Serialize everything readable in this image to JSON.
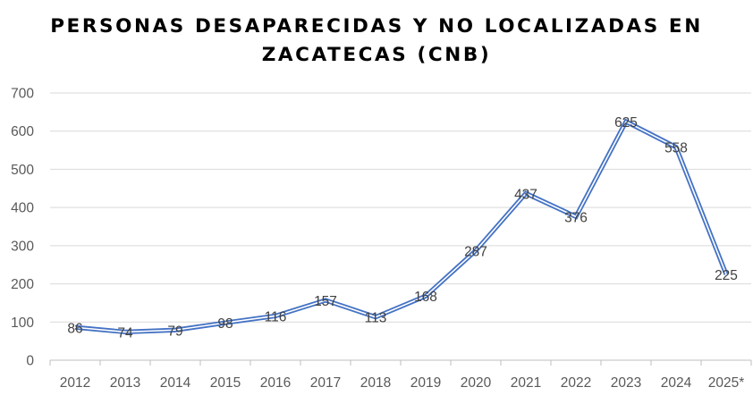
{
  "chart_data": {
    "type": "line",
    "title_lines": [
      "PERSONAS DESAPARECIDAS Y NO LOCALIZADAS EN",
      "ZACATECAS (CNB)"
    ],
    "categories": [
      "2012",
      "2013",
      "2014",
      "2015",
      "2016",
      "2017",
      "2018",
      "2019",
      "2020",
      "2021",
      "2022",
      "2023",
      "2024",
      "2025*"
    ],
    "series": [
      {
        "name": "Personas desaparecidas y no localizadas",
        "values": [
          86,
          74,
          79,
          98,
          116,
          157,
          113,
          168,
          287,
          437,
          376,
          625,
          558,
          225
        ]
      }
    ],
    "yticks": [
      0,
      100,
      200,
      300,
      400,
      500,
      600,
      700
    ],
    "ylim": [
      0,
      700
    ],
    "grid": true,
    "legend": "none",
    "xlabel": "",
    "ylabel": "",
    "colors": {
      "line_outer": "#4472C4",
      "line_inner": "#ffffff",
      "grid": "#d9d9d9",
      "axis": "#bfbfbf"
    }
  }
}
